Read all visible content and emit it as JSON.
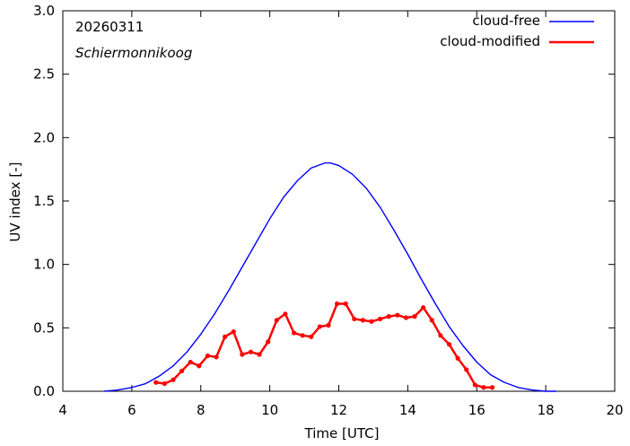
{
  "chart_data": {
    "type": "line",
    "title": "",
    "date": "20260311",
    "location": "Schiermonnikoog",
    "xlabel": "Time  [UTC]",
    "ylabel": "UV index  [-]",
    "xlim": [
      4,
      20
    ],
    "ylim": [
      0,
      3
    ],
    "xticks": [
      4,
      6,
      8,
      10,
      12,
      14,
      16,
      18,
      20
    ],
    "yticks": [
      0.0,
      0.5,
      1.0,
      1.5,
      2.0,
      2.5,
      3.0
    ],
    "ytick_labels": [
      "0.0",
      "0.5",
      "1.0",
      "1.5",
      "2.0",
      "2.5",
      "3.0"
    ],
    "grid": false,
    "legend_position": "top-right",
    "series": [
      {
        "name": "cloud-free",
        "color": "#0000ff",
        "style": "line",
        "x": [
          5.2,
          5.6,
          6.0,
          6.4,
          6.8,
          7.2,
          7.6,
          8.0,
          8.4,
          8.8,
          9.2,
          9.6,
          10.0,
          10.4,
          10.8,
          11.2,
          11.6,
          11.75,
          12.0,
          12.4,
          12.8,
          13.2,
          13.6,
          14.0,
          14.4,
          14.8,
          15.2,
          15.6,
          16.0,
          16.4,
          16.8,
          17.2,
          17.6,
          18.0,
          18.3
        ],
        "y": [
          0.0,
          0.01,
          0.03,
          0.06,
          0.12,
          0.2,
          0.31,
          0.45,
          0.61,
          0.79,
          0.98,
          1.17,
          1.36,
          1.53,
          1.66,
          1.76,
          1.8,
          1.8,
          1.78,
          1.71,
          1.6,
          1.45,
          1.27,
          1.08,
          0.88,
          0.69,
          0.51,
          0.36,
          0.23,
          0.13,
          0.07,
          0.03,
          0.01,
          0.0,
          0.0
        ]
      },
      {
        "name": "cloud-modified",
        "color": "#ff0000",
        "style": "line-points",
        "x": [
          6.7,
          6.95,
          7.2,
          7.45,
          7.7,
          7.95,
          8.2,
          8.45,
          8.7,
          8.95,
          9.2,
          9.45,
          9.7,
          9.95,
          10.2,
          10.45,
          10.7,
          10.95,
          11.2,
          11.45,
          11.7,
          11.95,
          12.2,
          12.45,
          12.7,
          12.95,
          13.2,
          13.45,
          13.7,
          13.95,
          14.2,
          14.45,
          14.7,
          14.95,
          15.2,
          15.45,
          15.7,
          15.95,
          16.2,
          16.45
        ],
        "y": [
          0.07,
          0.06,
          0.09,
          0.16,
          0.23,
          0.2,
          0.28,
          0.27,
          0.43,
          0.47,
          0.29,
          0.31,
          0.29,
          0.39,
          0.56,
          0.61,
          0.46,
          0.44,
          0.43,
          0.51,
          0.52,
          0.69,
          0.69,
          0.57,
          0.56,
          0.55,
          0.57,
          0.59,
          0.6,
          0.58,
          0.59,
          0.66,
          0.56,
          0.44,
          0.37,
          0.26,
          0.17,
          0.05,
          0.03,
          0.03
        ]
      }
    ]
  }
}
